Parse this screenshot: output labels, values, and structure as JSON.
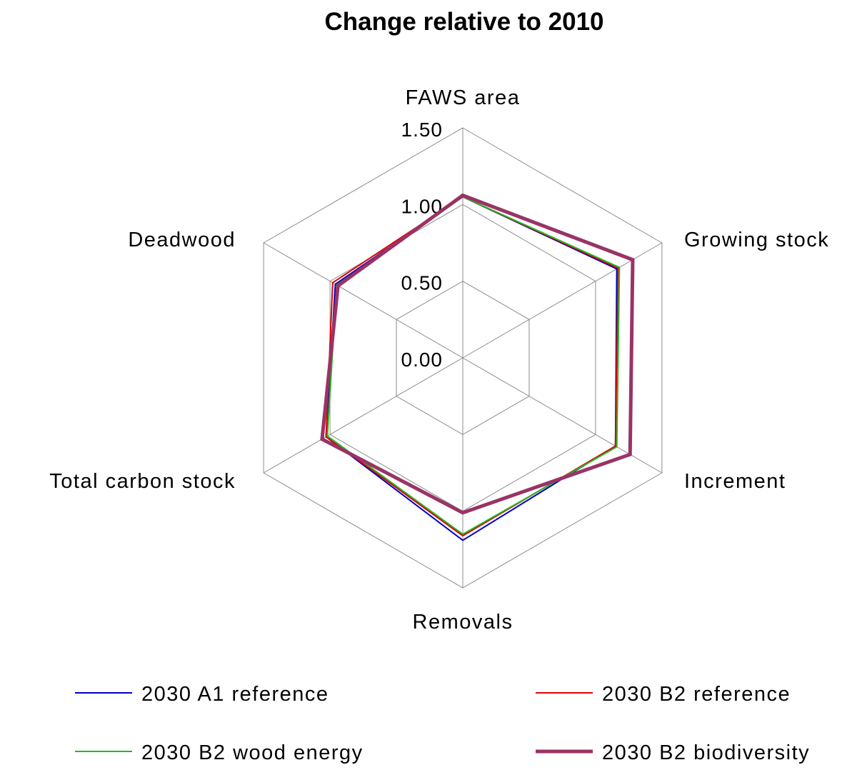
{
  "chart_data": {
    "type": "radar",
    "title": "Change relative to 2010",
    "axes": [
      "FAWS area",
      "Growing stock",
      "Increment",
      "Removals",
      "Total carbon stock",
      "Deadwood"
    ],
    "rlim": [
      0,
      1.5
    ],
    "ticks": [
      "0.00",
      "0.50",
      "1.00",
      "1.50"
    ],
    "tick_values": [
      0,
      0.5,
      1.0,
      1.5
    ],
    "grid": true,
    "legend": "bottom",
    "series": [
      {
        "name": "2030 A1 reference",
        "color": "#0000c0",
        "width": 2,
        "values": [
          1.05,
          1.16,
          1.15,
          1.19,
          1.03,
          0.96
        ]
      },
      {
        "name": "2030 B2 reference",
        "color": "#e00000",
        "width": 2,
        "values": [
          1.05,
          1.17,
          1.15,
          1.16,
          1.03,
          0.98
        ]
      },
      {
        "name": "2030 B2 wood energy",
        "color": "#22b822",
        "width": 2,
        "values": [
          1.05,
          1.18,
          1.16,
          1.15,
          1.02,
          0.95
        ]
      },
      {
        "name": "2030 B2 biodiversity",
        "color": "#993366",
        "width": 5,
        "values": [
          1.06,
          1.28,
          1.26,
          1.01,
          1.06,
          0.94
        ]
      }
    ]
  }
}
